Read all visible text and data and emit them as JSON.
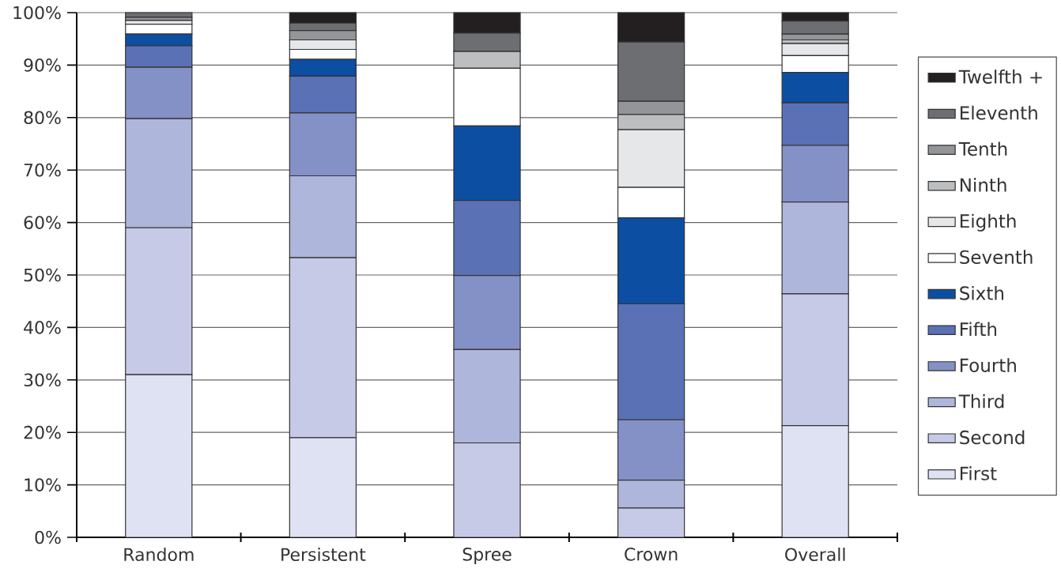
{
  "chart_data": {
    "type": "bar",
    "stacked": true,
    "grid": "y",
    "legend": "right",
    "categories": [
      "Random",
      "Persistent",
      "Spree",
      "Crown",
      "Overall"
    ],
    "ylim": [
      0,
      100
    ],
    "yticks": [
      {
        "value": 0,
        "label": "0%"
      },
      {
        "value": 10,
        "label": "10%"
      },
      {
        "value": 20,
        "label": "20%"
      },
      {
        "value": 30,
        "label": "30%"
      },
      {
        "value": 40,
        "label": "40%"
      },
      {
        "value": 50,
        "label": "50%"
      },
      {
        "value": 60,
        "label": "60%"
      },
      {
        "value": 70,
        "label": "70%"
      },
      {
        "value": 80,
        "label": "80%"
      },
      {
        "value": 90,
        "label": "90%"
      },
      {
        "value": 100,
        "label": "100%"
      }
    ],
    "series": [
      {
        "name": "First",
        "color": "#dfe2f2",
        "values": [
          31.0,
          19.0,
          0,
          0,
          21.3
        ]
      },
      {
        "name": "Second",
        "color": "#c6cae6",
        "values": [
          28.0,
          34.3,
          18.0,
          5.6,
          25.1
        ]
      },
      {
        "name": "Third",
        "color": "#aeb6dc",
        "values": [
          20.8,
          15.6,
          17.8,
          5.3,
          17.5
        ]
      },
      {
        "name": "Fourth",
        "color": "#8491c6",
        "values": [
          9.8,
          12.0,
          14.1,
          11.5,
          10.8
        ]
      },
      {
        "name": "Fifth",
        "color": "#5a71b5",
        "values": [
          4.1,
          7.0,
          14.3,
          22.1,
          8.1
        ]
      },
      {
        "name": "Sixth",
        "color": "#0c4ea2",
        "values": [
          2.2,
          3.2,
          14.2,
          16.4,
          5.8
        ]
      },
      {
        "name": "Seventh",
        "color": "#ffffff",
        "values": [
          1.9,
          1.9,
          11.0,
          5.8,
          3.2
        ]
      },
      {
        "name": "Eighth",
        "color": "#e6e7e8",
        "values": [
          0.7,
          1.8,
          0,
          11.0,
          2.3
        ]
      },
      {
        "name": "Ninth",
        "color": "#bcbec0",
        "values": [
          0,
          0,
          3.2,
          2.9,
          0.7
        ]
      },
      {
        "name": "Tenth",
        "color": "#939598",
        "values": [
          0.6,
          1.8,
          0,
          2.5,
          1.1
        ]
      },
      {
        "name": "Eleventh",
        "color": "#6d6e71",
        "values": [
          0.9,
          1.4,
          3.5,
          11.3,
          2.5
        ]
      },
      {
        "name": "Twelfth +",
        "color": "#231f20",
        "values": [
          0,
          2.0,
          3.9,
          5.6,
          1.6
        ]
      }
    ]
  }
}
